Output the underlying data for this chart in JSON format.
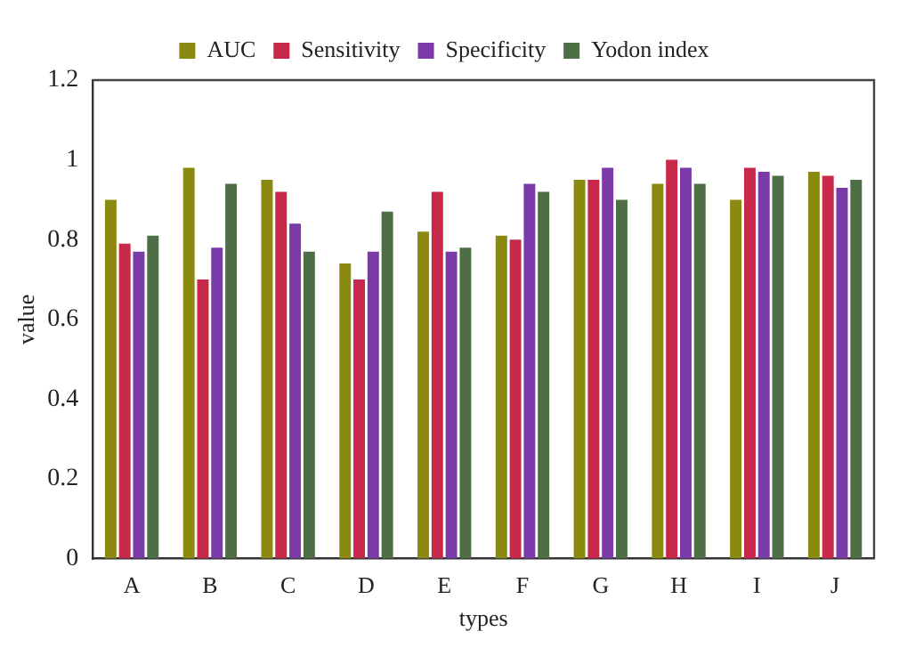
{
  "chart_data": {
    "type": "bar",
    "xlabel": "types",
    "ylabel": "value",
    "categories": [
      "A",
      "B",
      "C",
      "D",
      "E",
      "F",
      "G",
      "H",
      "I",
      "J"
    ],
    "series": [
      {
        "name": "AUC",
        "color": "#8a8a10",
        "values": [
          0.9,
          0.98,
          0.95,
          0.74,
          0.82,
          0.81,
          0.95,
          0.94,
          0.9,
          0.97
        ]
      },
      {
        "name": "Sensitivity",
        "color": "#c8284a",
        "values": [
          0.79,
          0.7,
          0.92,
          0.7,
          0.92,
          0.8,
          0.95,
          1.0,
          0.98,
          0.96
        ]
      },
      {
        "name": "Specificity",
        "color": "#7a3aa8",
        "values": [
          0.77,
          0.78,
          0.84,
          0.77,
          0.77,
          0.94,
          0.98,
          0.98,
          0.97,
          0.93
        ]
      },
      {
        "name": "Yodon index",
        "color": "#4e6e46",
        "values": [
          0.81,
          0.94,
          0.77,
          0.87,
          0.78,
          0.92,
          0.9,
          0.94,
          0.96,
          0.95
        ]
      }
    ],
    "ylim": [
      0,
      1.2
    ],
    "yticks": [
      0,
      0.2,
      0.4,
      0.6,
      0.8,
      1,
      1.2
    ],
    "grid": false,
    "legend": "top"
  }
}
